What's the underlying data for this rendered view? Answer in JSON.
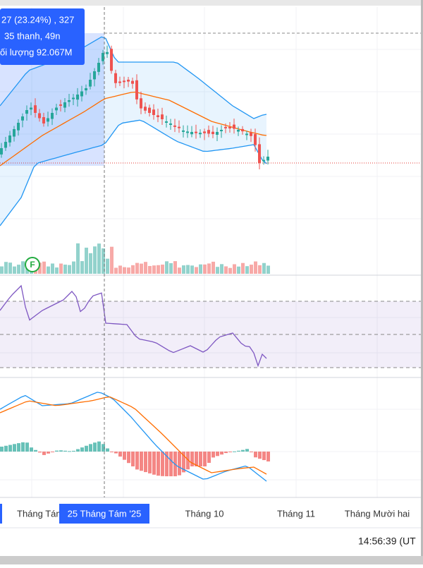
{
  "tooltip": {
    "lines": [
      "27 (23.24%) , 327",
      "35 thanh, 49n",
      "ối lượng 92.067M"
    ]
  },
  "marker": "F",
  "x_axis": {
    "labels": [
      "Tháng Tám",
      "Tháng 10",
      "Tháng 11",
      "Tháng Mười hai"
    ],
    "highlighted": "25 Tháng Tám '25"
  },
  "clock": "14:56:39 (UT"
}
